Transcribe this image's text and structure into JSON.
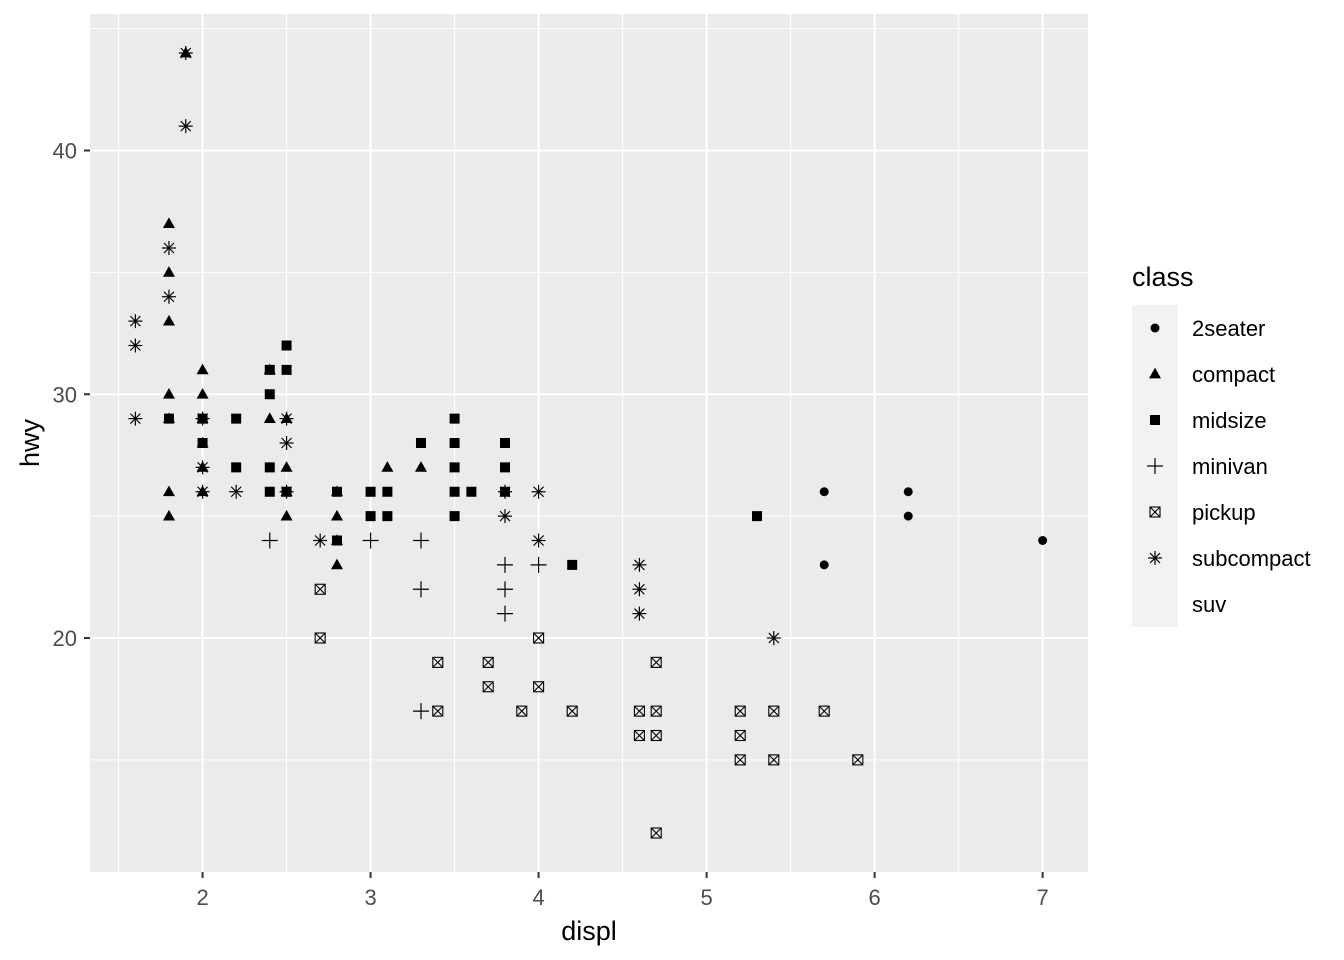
{
  "chart_data": {
    "type": "scatter",
    "xlabel": "displ",
    "ylabel": "hwy",
    "xlim": [
      1.33,
      7.27
    ],
    "ylim": [
      10.4,
      45.6
    ],
    "x_ticks": [
      2,
      3,
      4,
      5,
      6,
      7
    ],
    "y_ticks": [
      20,
      30,
      40
    ],
    "x_minor_ticks": [
      1.5,
      2.5,
      3.5,
      4.5,
      5.5,
      6.5
    ],
    "y_minor_ticks": [
      15,
      25,
      35,
      45
    ],
    "grid": true,
    "background": "#ebebeb",
    "grid_color": "#ffffff",
    "point_color": "#000000",
    "legend": {
      "title": "class",
      "position": "right",
      "key_background": "#f2f2f2",
      "entries": [
        {
          "label": "2seater",
          "shape": "circle"
        },
        {
          "label": "compact",
          "shape": "triangle"
        },
        {
          "label": "midsize",
          "shape": "square"
        },
        {
          "label": "minivan",
          "shape": "plus"
        },
        {
          "label": "pickup",
          "shape": "square-cross"
        },
        {
          "label": "subcompact",
          "shape": "asterisk"
        },
        {
          "label": "suv",
          "shape": "none"
        }
      ]
    },
    "series": [
      {
        "name": "2seater",
        "shape": "circle",
        "points": [
          [
            5.7,
            26
          ],
          [
            5.7,
            23
          ],
          [
            6.2,
            26
          ],
          [
            6.2,
            25
          ],
          [
            7.0,
            24
          ]
        ]
      },
      {
        "name": "compact",
        "shape": "triangle",
        "points": [
          [
            1.8,
            37
          ],
          [
            1.8,
            35
          ],
          [
            1.8,
            33
          ],
          [
            1.8,
            30
          ],
          [
            1.8,
            29
          ],
          [
            1.8,
            26
          ],
          [
            1.8,
            25
          ],
          [
            1.9,
            44
          ],
          [
            2.0,
            31
          ],
          [
            2.0,
            30
          ],
          [
            2.0,
            29
          ],
          [
            2.0,
            28
          ],
          [
            2.0,
            27
          ],
          [
            2.0,
            26
          ],
          [
            2.4,
            31
          ],
          [
            2.4,
            29
          ],
          [
            2.5,
            29
          ],
          [
            2.5,
            27
          ],
          [
            2.5,
            26
          ],
          [
            2.5,
            25
          ],
          [
            2.8,
            26
          ],
          [
            2.8,
            25
          ],
          [
            2.8,
            24
          ],
          [
            2.8,
            23
          ],
          [
            3.1,
            27
          ],
          [
            3.3,
            27
          ]
        ]
      },
      {
        "name": "midsize",
        "shape": "square",
        "points": [
          [
            1.8,
            29
          ],
          [
            2.0,
            29
          ],
          [
            2.0,
            28
          ],
          [
            2.2,
            29
          ],
          [
            2.2,
            27
          ],
          [
            2.4,
            31
          ],
          [
            2.4,
            30
          ],
          [
            2.4,
            27
          ],
          [
            2.4,
            26
          ],
          [
            2.5,
            32
          ],
          [
            2.5,
            31
          ],
          [
            2.5,
            26
          ],
          [
            2.8,
            26
          ],
          [
            2.8,
            24
          ],
          [
            3.0,
            26
          ],
          [
            3.0,
            25
          ],
          [
            3.1,
            26
          ],
          [
            3.1,
            25
          ],
          [
            3.3,
            28
          ],
          [
            3.5,
            29
          ],
          [
            3.5,
            28
          ],
          [
            3.5,
            27
          ],
          [
            3.5,
            26
          ],
          [
            3.5,
            25
          ],
          [
            3.6,
            26
          ],
          [
            3.8,
            28
          ],
          [
            3.8,
            27
          ],
          [
            3.8,
            26
          ],
          [
            4.2,
            23
          ],
          [
            5.3,
            25
          ]
        ]
      },
      {
        "name": "minivan",
        "shape": "plus",
        "points": [
          [
            2.4,
            24
          ],
          [
            3.0,
            24
          ],
          [
            3.3,
            24
          ],
          [
            3.3,
            22
          ],
          [
            3.3,
            17
          ],
          [
            3.8,
            23
          ],
          [
            3.8,
            22
          ],
          [
            3.8,
            21
          ],
          [
            4.0,
            23
          ]
        ]
      },
      {
        "name": "pickup",
        "shape": "square-cross",
        "points": [
          [
            2.7,
            22
          ],
          [
            2.7,
            20
          ],
          [
            3.4,
            19
          ],
          [
            3.4,
            17
          ],
          [
            3.7,
            19
          ],
          [
            3.7,
            18
          ],
          [
            3.9,
            17
          ],
          [
            4.0,
            20
          ],
          [
            4.0,
            18
          ],
          [
            4.2,
            17
          ],
          [
            4.6,
            17
          ],
          [
            4.6,
            16
          ],
          [
            4.7,
            19
          ],
          [
            4.7,
            17
          ],
          [
            4.7,
            16
          ],
          [
            4.7,
            12
          ],
          [
            5.2,
            17
          ],
          [
            5.2,
            16
          ],
          [
            5.2,
            15
          ],
          [
            5.4,
            17
          ],
          [
            5.4,
            15
          ],
          [
            5.7,
            17
          ],
          [
            5.9,
            15
          ]
        ]
      },
      {
        "name": "subcompact",
        "shape": "asterisk",
        "points": [
          [
            1.6,
            33
          ],
          [
            1.6,
            32
          ],
          [
            1.6,
            29
          ],
          [
            1.8,
            36
          ],
          [
            1.8,
            34
          ],
          [
            1.9,
            44
          ],
          [
            1.9,
            41
          ],
          [
            2.0,
            29
          ],
          [
            2.0,
            27
          ],
          [
            2.0,
            26
          ],
          [
            2.2,
            26
          ],
          [
            2.5,
            29
          ],
          [
            2.5,
            28
          ],
          [
            2.5,
            26
          ],
          [
            2.7,
            24
          ],
          [
            3.8,
            26
          ],
          [
            3.8,
            25
          ],
          [
            4.0,
            26
          ],
          [
            4.0,
            24
          ],
          [
            4.6,
            23
          ],
          [
            4.6,
            22
          ],
          [
            4.6,
            21
          ],
          [
            5.4,
            20
          ]
        ]
      },
      {
        "name": "suv",
        "shape": "none",
        "points": []
      }
    ]
  }
}
